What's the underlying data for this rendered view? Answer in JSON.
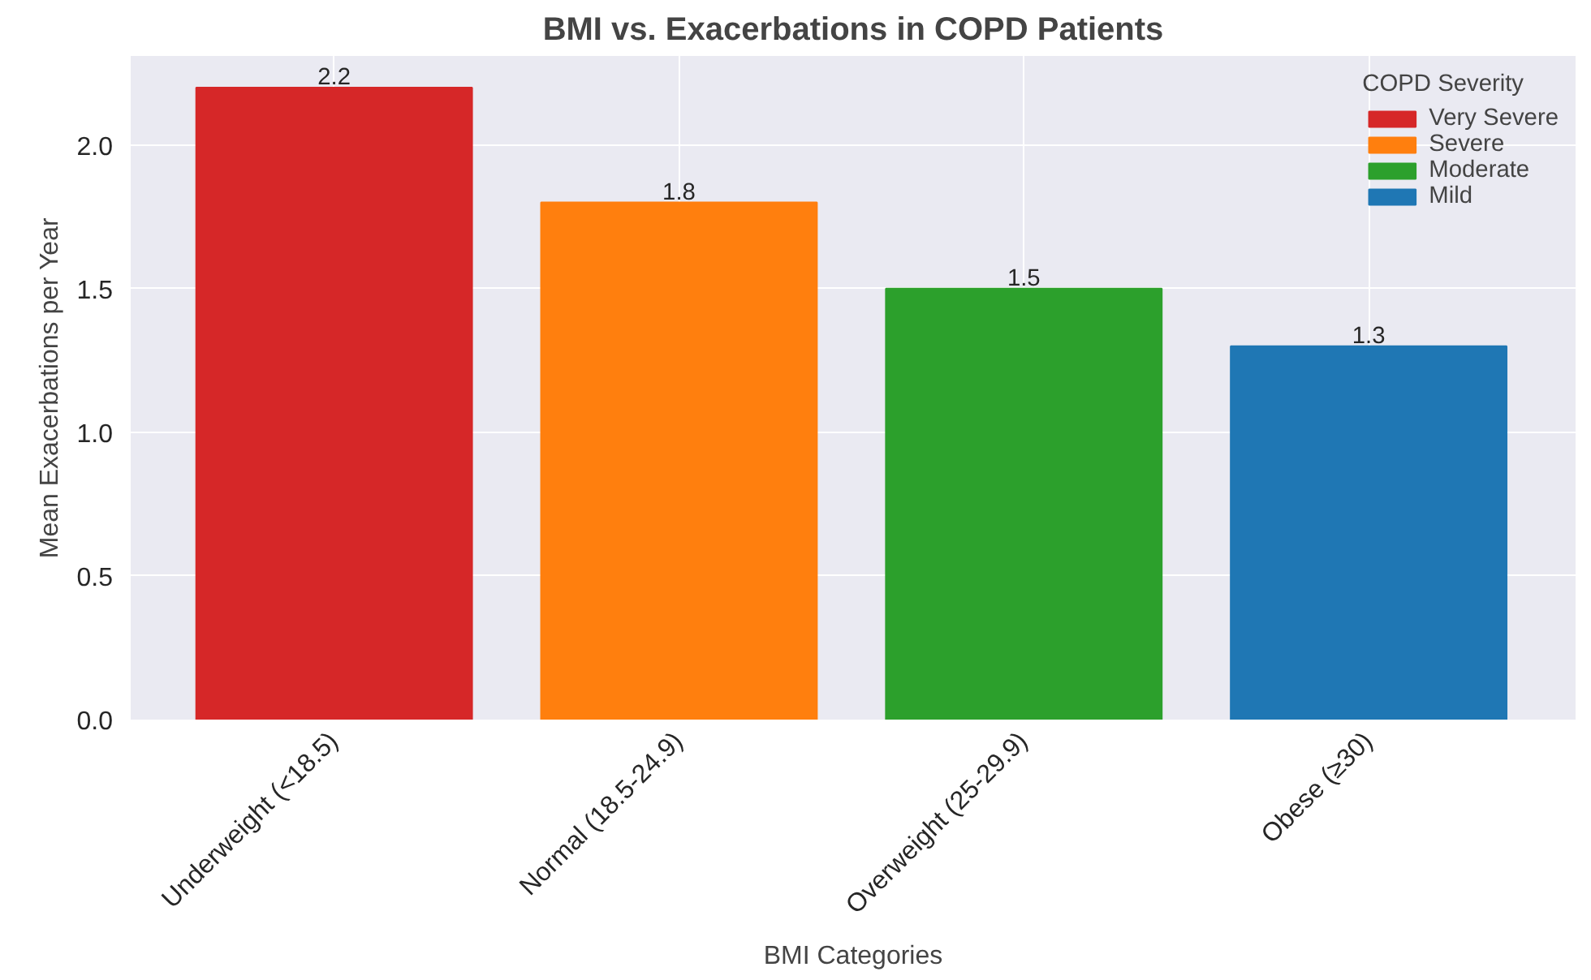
{
  "chart_data": {
    "type": "bar",
    "title": "BMI vs. Exacerbations in COPD Patients",
    "xlabel": "BMI Categories",
    "ylabel": "Mean Exacerbations per Year",
    "legend_title": "COPD Severity",
    "categories": [
      "Underweight (<18.5)",
      "Normal (18.5-24.9)",
      "Overweight (25-29.9)",
      "Obese (≥30)"
    ],
    "series": [
      {
        "name": "Very Severe",
        "color": "#d62728",
        "values": [
          2.2,
          null,
          null,
          null
        ]
      },
      {
        "name": "Severe",
        "color": "#ff7f0e",
        "values": [
          null,
          1.8,
          null,
          null
        ]
      },
      {
        "name": "Moderate",
        "color": "#2ca02c",
        "values": [
          null,
          null,
          1.5,
          null
        ]
      },
      {
        "name": "Mild",
        "color": "#1f77b4",
        "values": [
          null,
          null,
          null,
          1.3
        ]
      }
    ],
    "ylim": [
      0,
      2.31
    ],
    "yticks": [
      {
        "value": 0,
        "label": "0.0"
      },
      {
        "value": 0.5,
        "label": "0.5"
      },
      {
        "value": 1,
        "label": "1.0"
      },
      {
        "value": 1.5,
        "label": "1.5"
      },
      {
        "value": 2,
        "label": "2.0"
      }
    ],
    "grid": true,
    "legend": "top right",
    "data_labels": true
  }
}
